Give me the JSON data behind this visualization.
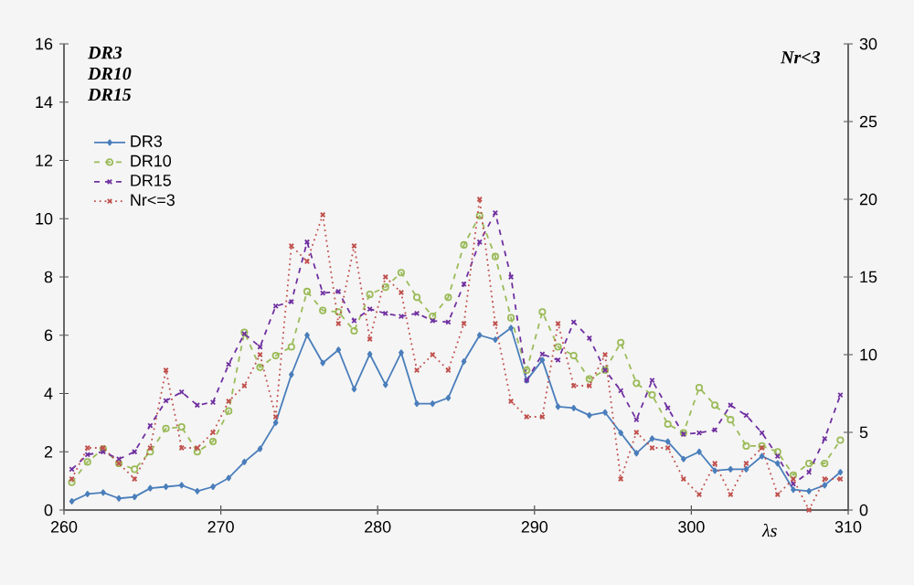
{
  "chart_data": {
    "type": "line",
    "xlabel": "λs",
    "ylabel": "DR3 DR10 DR15",
    "y2label": "Nr<3",
    "legend": "top left",
    "x": [
      260.5,
      261.5,
      262.5,
      263.5,
      264.5,
      265.5,
      266.5,
      267.5,
      268.5,
      269.5,
      270.5,
      271.5,
      272.5,
      273.5,
      274.5,
      275.5,
      276.5,
      277.5,
      278.5,
      279.5,
      280.5,
      281.5,
      282.5,
      283.5,
      284.5,
      285.5,
      286.5,
      287.5,
      288.5,
      289.5,
      290.5,
      291.5,
      292.5,
      293.5,
      294.5,
      295.5,
      296.5,
      297.5,
      298.5,
      299.5,
      300.5,
      301.5,
      302.5,
      303.5,
      304.5,
      305.5,
      306.5,
      307.5,
      308.5,
      309.5
    ],
    "xlim": [
      260,
      310
    ],
    "xticks": [
      260,
      270,
      280,
      290,
      300,
      310
    ],
    "ylim": [
      0,
      16
    ],
    "yticks": [
      0,
      2,
      4,
      6,
      8,
      10,
      12,
      14,
      16
    ],
    "y2lim": [
      0,
      30
    ],
    "y2ticks": [
      0,
      5,
      10,
      15,
      20,
      25,
      30
    ],
    "series": [
      {
        "name": "DR3",
        "color": "#4a7ebb",
        "marker": "diamond",
        "line_style": "solid",
        "values": [
          0.3,
          0.55,
          0.6,
          0.4,
          0.45,
          0.75,
          0.8,
          0.85,
          0.65,
          0.8,
          1.1,
          1.65,
          2.1,
          3.0,
          4.65,
          6.0,
          5.05,
          5.5,
          4.15,
          5.35,
          4.3,
          5.4,
          3.65,
          3.65,
          3.85,
          5.1,
          6.0,
          5.85,
          6.25,
          4.45,
          5.15,
          3.55,
          3.5,
          3.25,
          3.35,
          2.65,
          1.95,
          2.45,
          2.35,
          1.75,
          2.0,
          1.35,
          1.4,
          1.4,
          1.85,
          1.6,
          0.7,
          0.65,
          0.85,
          1.3
        ]
      },
      {
        "name": "DR10",
        "color": "#9bbb59",
        "marker": "circle",
        "line_style": "dashed",
        "values": [
          0.95,
          1.65,
          2.1,
          1.6,
          1.4,
          2.0,
          2.8,
          2.85,
          2.0,
          2.35,
          3.4,
          6.1,
          4.9,
          5.3,
          5.6,
          7.5,
          6.85,
          6.8,
          6.15,
          7.4,
          7.65,
          8.15,
          7.3,
          6.65,
          7.3,
          9.1,
          10.1,
          8.7,
          6.6,
          4.8,
          6.8,
          5.6,
          5.3,
          4.5,
          4.8,
          5.75,
          4.35,
          3.95,
          2.95,
          2.65,
          4.2,
          3.6,
          3.1,
          2.2,
          2.2,
          2.0,
          1.2,
          1.6,
          1.6,
          2.4
        ]
      },
      {
        "name": "DR15",
        "color": "#7030a0",
        "marker": "cross",
        "line_style": "dashed",
        "values": [
          1.4,
          1.9,
          2.0,
          1.75,
          2.0,
          2.9,
          3.75,
          4.05,
          3.6,
          3.7,
          5.0,
          6.05,
          5.6,
          7.0,
          7.15,
          9.2,
          7.45,
          7.5,
          6.5,
          6.9,
          6.75,
          6.65,
          6.75,
          6.5,
          6.45,
          7.75,
          9.2,
          10.2,
          8.0,
          4.45,
          5.35,
          5.15,
          6.45,
          5.9,
          4.8,
          4.1,
          3.1,
          4.45,
          3.5,
          2.6,
          2.65,
          2.75,
          3.6,
          3.25,
          2.65,
          1.85,
          0.9,
          1.3,
          2.45,
          3.95
        ]
      },
      {
        "name": "Nr<=3",
        "color": "#c0504d",
        "marker": "cross",
        "line_style": "dotted",
        "axis": "y2",
        "values": [
          2,
          4,
          4,
          3,
          2,
          4,
          9,
          4,
          4,
          5,
          7,
          8,
          10,
          6,
          17,
          16,
          19,
          12,
          17,
          11,
          15,
          14,
          9,
          10,
          9,
          12.0,
          20.0,
          12.0,
          7.0,
          6.0,
          6.0,
          12.0,
          8.0,
          8.0,
          10.0,
          2.0,
          5.0,
          4.0,
          4.0,
          2.0,
          1.0,
          3.0,
          1.0,
          3.0,
          4.0,
          1.0,
          2.0,
          0,
          2.0,
          2.0
        ]
      }
    ]
  }
}
